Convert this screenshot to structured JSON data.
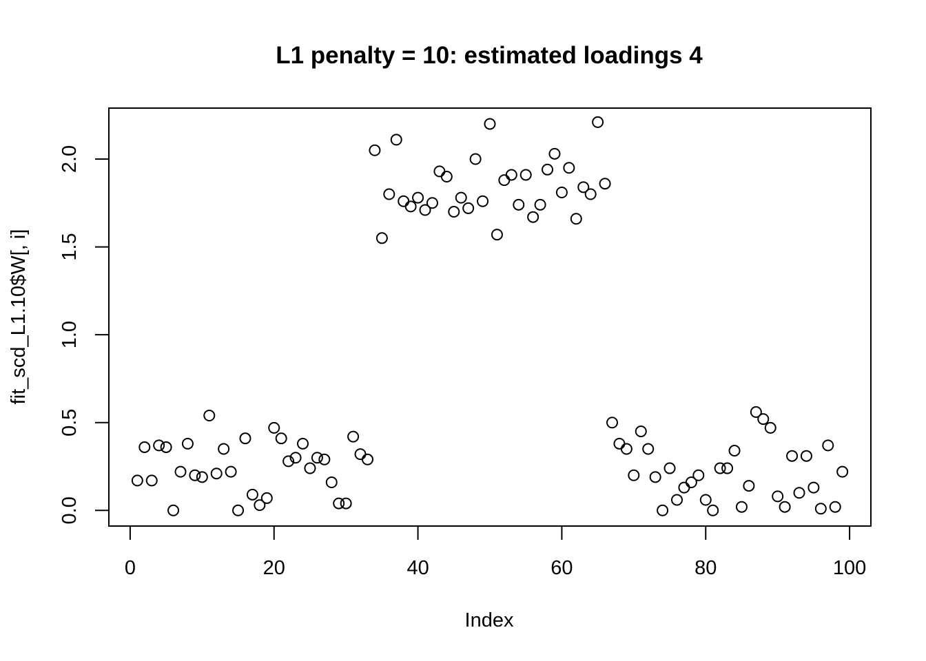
{
  "chart_data": {
    "type": "scatter",
    "title": "L1 penalty = 10: estimated loadings 4",
    "xlabel": "Index",
    "ylabel": "fit_scd_L1.10$W[, i]",
    "xlim": [
      -2.96,
      102.96
    ],
    "ylim": [
      -0.089,
      2.29
    ],
    "xticks": [
      0,
      20,
      40,
      60,
      80,
      100
    ],
    "yticks": [
      0.0,
      0.5,
      1.0,
      1.5,
      2.0
    ],
    "xtick_labels": [
      "0",
      "20",
      "40",
      "60",
      "80",
      "100"
    ],
    "ytick_labels": [
      "0.0",
      "0.5",
      "1.0",
      "1.5",
      "2.0"
    ],
    "grid": false,
    "marker": "open-circle",
    "x": [
      1,
      2,
      3,
      4,
      5,
      6,
      7,
      8,
      9,
      10,
      11,
      12,
      13,
      14,
      15,
      16,
      17,
      18,
      19,
      20,
      21,
      22,
      23,
      24,
      25,
      26,
      27,
      28,
      29,
      30,
      31,
      32,
      33,
      34,
      35,
      36,
      37,
      38,
      39,
      40,
      41,
      42,
      43,
      44,
      45,
      46,
      47,
      48,
      49,
      50,
      51,
      52,
      53,
      54,
      55,
      56,
      57,
      58,
      59,
      60,
      61,
      62,
      63,
      64,
      65,
      66,
      67,
      68,
      69,
      70,
      71,
      72,
      73,
      74,
      75,
      76,
      77,
      78,
      79,
      80,
      81,
      82,
      83,
      84,
      85,
      86,
      87,
      88,
      89,
      90,
      91,
      92,
      93,
      94,
      95,
      96,
      97,
      98,
      99
    ],
    "y": [
      0.17,
      0.36,
      0.17,
      0.37,
      0.36,
      0.0,
      0.22,
      0.38,
      0.2,
      0.19,
      0.54,
      0.21,
      0.35,
      0.22,
      0.0,
      0.41,
      0.09,
      0.03,
      0.07,
      0.47,
      0.41,
      0.28,
      0.3,
      0.38,
      0.24,
      0.3,
      0.29,
      0.16,
      0.04,
      0.04,
      0.42,
      0.32,
      0.29,
      2.05,
      1.55,
      1.8,
      2.11,
      1.76,
      1.73,
      1.78,
      1.71,
      1.75,
      1.93,
      1.9,
      1.7,
      1.78,
      1.72,
      2.0,
      1.76,
      2.2,
      1.57,
      1.88,
      1.91,
      1.74,
      1.91,
      1.67,
      1.74,
      1.94,
      2.03,
      1.81,
      1.95,
      1.66,
      1.84,
      1.8,
      2.21,
      1.86,
      0.5,
      0.38,
      0.35,
      0.2,
      0.45,
      0.35,
      0.19,
      0.0,
      0.24,
      0.06,
      0.13,
      0.16,
      0.2,
      0.06,
      0.0,
      0.24,
      0.24,
      0.34,
      0.02,
      0.14,
      0.56,
      0.52,
      0.47,
      0.08,
      0.02,
      0.31,
      0.1,
      0.31,
      0.13,
      0.01,
      0.37,
      0.02,
      0.22
    ]
  }
}
